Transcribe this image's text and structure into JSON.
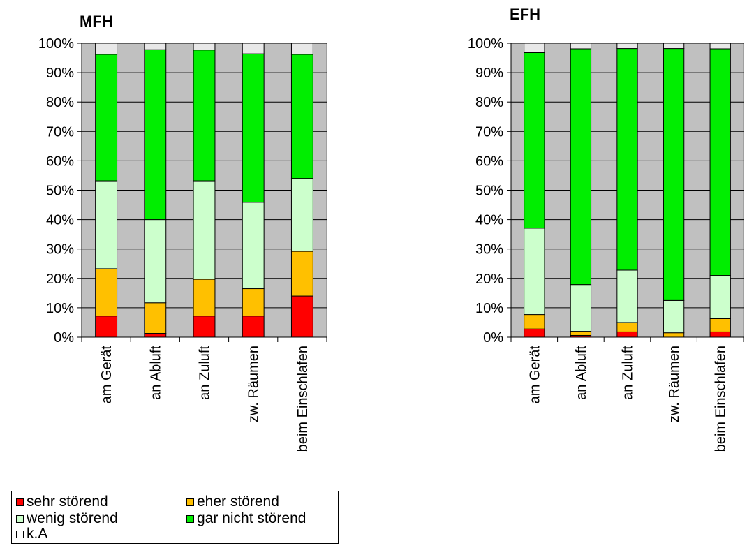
{
  "chart_data": [
    {
      "type": "bar",
      "stacked": true,
      "percent": true,
      "title": "MFH",
      "categories": [
        "am Gerät",
        "an Abluft",
        "an Zuluft",
        "zw. Räumen",
        "beim Einschlafen"
      ],
      "ylim": [
        0,
        100
      ],
      "yticks": [
        "0%",
        "10%",
        "20%",
        "30%",
        "40%",
        "50%",
        "60%",
        "70%",
        "80%",
        "90%",
        "100%"
      ],
      "grid": true,
      "series": [
        {
          "name": "sehr störend",
          "values": [
            7.2,
            1.3,
            7.2,
            7.2,
            14.0
          ]
        },
        {
          "name": "eher störend",
          "values": [
            16.1,
            10.4,
            12.5,
            9.3,
            15.2
          ]
        },
        {
          "name": "wenig störend",
          "values": [
            29.9,
            28.3,
            33.5,
            29.4,
            24.8
          ]
        },
        {
          "name": "gar nicht störend",
          "values": [
            43.0,
            57.8,
            44.5,
            50.5,
            42.2
          ]
        },
        {
          "name": "k.A",
          "values": [
            3.8,
            2.2,
            2.3,
            3.6,
            3.8
          ]
        }
      ]
    },
    {
      "type": "bar",
      "stacked": true,
      "percent": true,
      "title": "EFH",
      "categories": [
        "am Gerät",
        "an Abluft",
        "an Zuluft",
        "zw. Räumen",
        "beim Einschlafen"
      ],
      "ylim": [
        0,
        100
      ],
      "yticks": [
        "0%",
        "10%",
        "20%",
        "30%",
        "40%",
        "50%",
        "60%",
        "70%",
        "80%",
        "90%",
        "100%"
      ],
      "grid": true,
      "series": [
        {
          "name": "sehr störend",
          "values": [
            2.8,
            0.6,
            1.8,
            0.0,
            1.8
          ]
        },
        {
          "name": "eher störend",
          "values": [
            4.9,
            1.4,
            3.2,
            1.5,
            4.5
          ]
        },
        {
          "name": "wenig störend",
          "values": [
            29.4,
            15.9,
            17.8,
            11.0,
            14.7
          ]
        },
        {
          "name": "gar nicht störend",
          "values": [
            59.7,
            80.2,
            75.4,
            85.7,
            77.1
          ]
        },
        {
          "name": "k.A",
          "values": [
            3.2,
            1.9,
            1.8,
            1.8,
            1.9
          ]
        }
      ]
    }
  ],
  "colors": {
    "sehr störend": "#ff0000",
    "eher störend": "#ffc000",
    "wenig störend": "#ccffcc",
    "gar nicht störend": "#00ee00",
    "k.A": "#e8e8e8",
    "plot_background": "#c0c0c0"
  },
  "legend": {
    "placement": "bottom-left",
    "items": [
      {
        "label": "sehr störend",
        "color": "#ff0000"
      },
      {
        "label": "eher störend",
        "color": "#ffc000"
      },
      {
        "label": "wenig störend",
        "color": "#ccffcc"
      },
      {
        "label": "gar nicht störend",
        "color": "#00ee00"
      },
      {
        "label": "k.A",
        "color": "#ffffff"
      }
    ]
  }
}
